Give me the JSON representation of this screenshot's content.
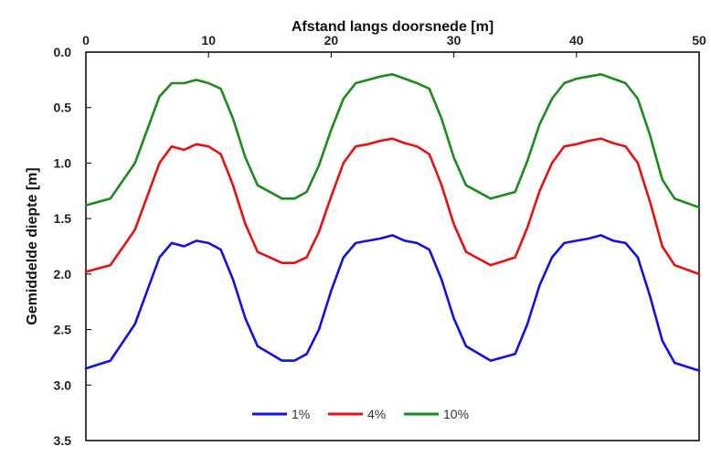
{
  "chart_data": {
    "type": "line",
    "xlabel": "Afstand langs doorsnede [m]",
    "ylabel": "Gemiddelde diepte [m]",
    "x_axis_position": "top",
    "y_axis_inverted": true,
    "xlim": [
      0,
      50
    ],
    "ylim": [
      0.0,
      3.5
    ],
    "x_ticks": [
      "0",
      "10",
      "20",
      "30",
      "40",
      "50"
    ],
    "y_ticks": [
      "0.0",
      "0.5",
      "1.0",
      "1.5",
      "2.0",
      "2.5",
      "3.0",
      "3.5"
    ],
    "grid": false,
    "legend_position": "bottom-center",
    "x": [
      0,
      2,
      4,
      5,
      6,
      7,
      8,
      9,
      10,
      11,
      12,
      13,
      14,
      16,
      17,
      18,
      19,
      20,
      21,
      22,
      23,
      24,
      25,
      26,
      27,
      28,
      29,
      30,
      31,
      33,
      35,
      36,
      37,
      38,
      39,
      40,
      41,
      42,
      43,
      44,
      45,
      46,
      47,
      48,
      50
    ],
    "series": [
      {
        "name": "1%",
        "color": "#1010e8",
        "values": [
          2.85,
          2.78,
          2.45,
          2.15,
          1.85,
          1.72,
          1.75,
          1.7,
          1.72,
          1.78,
          2.05,
          2.4,
          2.65,
          2.78,
          2.78,
          2.72,
          2.5,
          2.15,
          1.85,
          1.72,
          1.7,
          1.68,
          1.65,
          1.7,
          1.72,
          1.78,
          2.05,
          2.4,
          2.65,
          2.78,
          2.72,
          2.45,
          2.1,
          1.85,
          1.72,
          1.7,
          1.68,
          1.65,
          1.7,
          1.72,
          1.85,
          2.2,
          2.6,
          2.8,
          2.87
        ]
      },
      {
        "name": "4%",
        "color": "#e81010",
        "values": [
          1.98,
          1.92,
          1.6,
          1.3,
          1.0,
          0.85,
          0.88,
          0.83,
          0.85,
          0.92,
          1.2,
          1.55,
          1.8,
          1.9,
          1.9,
          1.85,
          1.62,
          1.3,
          1.0,
          0.85,
          0.83,
          0.8,
          0.78,
          0.82,
          0.85,
          0.92,
          1.2,
          1.55,
          1.8,
          1.92,
          1.85,
          1.58,
          1.25,
          1.0,
          0.85,
          0.83,
          0.8,
          0.78,
          0.82,
          0.85,
          1.0,
          1.35,
          1.75,
          1.92,
          2.0
        ]
      },
      {
        "name": "10%",
        "color": "#1a8c1a",
        "values": [
          1.38,
          1.32,
          1.0,
          0.7,
          0.4,
          0.28,
          0.28,
          0.25,
          0.28,
          0.33,
          0.6,
          0.95,
          1.2,
          1.32,
          1.32,
          1.26,
          1.02,
          0.7,
          0.42,
          0.28,
          0.25,
          0.22,
          0.2,
          0.24,
          0.28,
          0.33,
          0.6,
          0.95,
          1.2,
          1.32,
          1.26,
          0.98,
          0.65,
          0.42,
          0.28,
          0.24,
          0.22,
          0.2,
          0.24,
          0.28,
          0.42,
          0.75,
          1.15,
          1.32,
          1.4
        ]
      }
    ]
  }
}
